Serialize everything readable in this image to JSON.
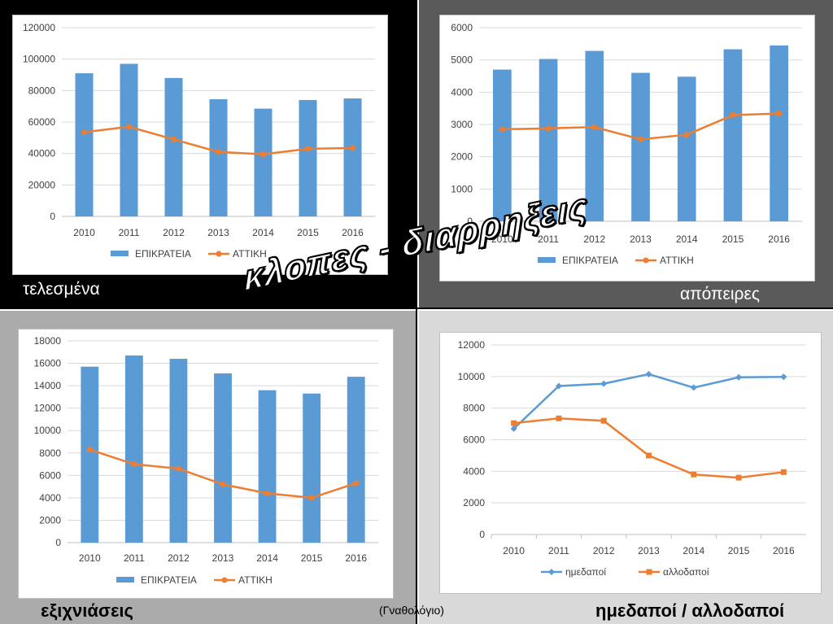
{
  "title": "κλοπες - διαρρηξεις",
  "credit": "(Γναθολόγιο)",
  "chart_data": [
    {
      "type": "bar",
      "caption": "τελεσμένα",
      "categories": [
        "2010",
        "2011",
        "2012",
        "2013",
        "2014",
        "2015",
        "2016"
      ],
      "series": [
        {
          "name": "ΕΠΙΚΡΑΤΕΙΑ",
          "kind": "bar",
          "color": "#5b9bd5",
          "values": [
            91000,
            97000,
            88000,
            74500,
            68500,
            74000,
            75000
          ]
        },
        {
          "name": "ΑΤΤΙΚΗ",
          "kind": "line",
          "color": "#ed7d31",
          "values": [
            53500,
            57000,
            49000,
            41000,
            39500,
            43000,
            43500
          ]
        }
      ],
      "ylim": [
        0,
        120000
      ],
      "yticks": [
        "0",
        "20000",
        "40000",
        "60000",
        "80000",
        "100000",
        "120000"
      ],
      "legend": "bottom"
    },
    {
      "type": "bar",
      "caption": "απόπειρες",
      "categories": [
        "2010",
        "2011",
        "2012",
        "2013",
        "2014",
        "2015",
        "2016"
      ],
      "series": [
        {
          "name": "ΕΠΙΚΡΑΤΕΙΑ",
          "kind": "bar",
          "color": "#5b9bd5",
          "values": [
            4700,
            5030,
            5280,
            4600,
            4480,
            5330,
            5450
          ]
        },
        {
          "name": "ΑΤΤΙΚΗ",
          "kind": "line",
          "color": "#ed7d31",
          "values": [
            2850,
            2880,
            2920,
            2540,
            2680,
            3290,
            3340
          ]
        }
      ],
      "ylim": [
        0,
        6000
      ],
      "yticks": [
        "0",
        "1000",
        "2000",
        "3000",
        "4000",
        "5000",
        "6000"
      ],
      "legend": "bottom"
    },
    {
      "type": "bar",
      "caption": "εξιχνιάσεις",
      "categories": [
        "2010",
        "2011",
        "2012",
        "2013",
        "2014",
        "2015",
        "2016"
      ],
      "series": [
        {
          "name": "ΕΠΙΚΡΑΤΕΙΑ",
          "kind": "bar",
          "color": "#5b9bd5",
          "values": [
            15700,
            16700,
            16400,
            15100,
            13600,
            13300,
            14800
          ]
        },
        {
          "name": "ΑΤΤΙΚΗ",
          "kind": "line",
          "color": "#ed7d31",
          "values": [
            8300,
            7000,
            6600,
            5200,
            4400,
            4000,
            5300
          ]
        }
      ],
      "ylim": [
        0,
        18000
      ],
      "yticks": [
        "0",
        "2000",
        "4000",
        "6000",
        "8000",
        "10000",
        "12000",
        "14000",
        "16000",
        "18000"
      ],
      "legend": "bottom"
    },
    {
      "type": "line",
      "caption": "ημεδαποί / αλλοδαποί",
      "categories": [
        "2010",
        "2011",
        "2012",
        "2013",
        "2014",
        "2015",
        "2016"
      ],
      "series": [
        {
          "name": "ημεδαποί",
          "kind": "line",
          "marker": "diamond",
          "color": "#5b9bd5",
          "values": [
            6700,
            9400,
            9550,
            10150,
            9300,
            9950,
            9980
          ]
        },
        {
          "name": "αλλοδαποί",
          "kind": "line",
          "marker": "square",
          "color": "#ed7d31",
          "values": [
            7050,
            7350,
            7200,
            5000,
            3800,
            3600,
            3950
          ]
        }
      ],
      "ylim": [
        0,
        12000
      ],
      "yticks": [
        "0",
        "2000",
        "4000",
        "6000",
        "8000",
        "10000",
        "12000"
      ],
      "legend": "bottom"
    }
  ]
}
